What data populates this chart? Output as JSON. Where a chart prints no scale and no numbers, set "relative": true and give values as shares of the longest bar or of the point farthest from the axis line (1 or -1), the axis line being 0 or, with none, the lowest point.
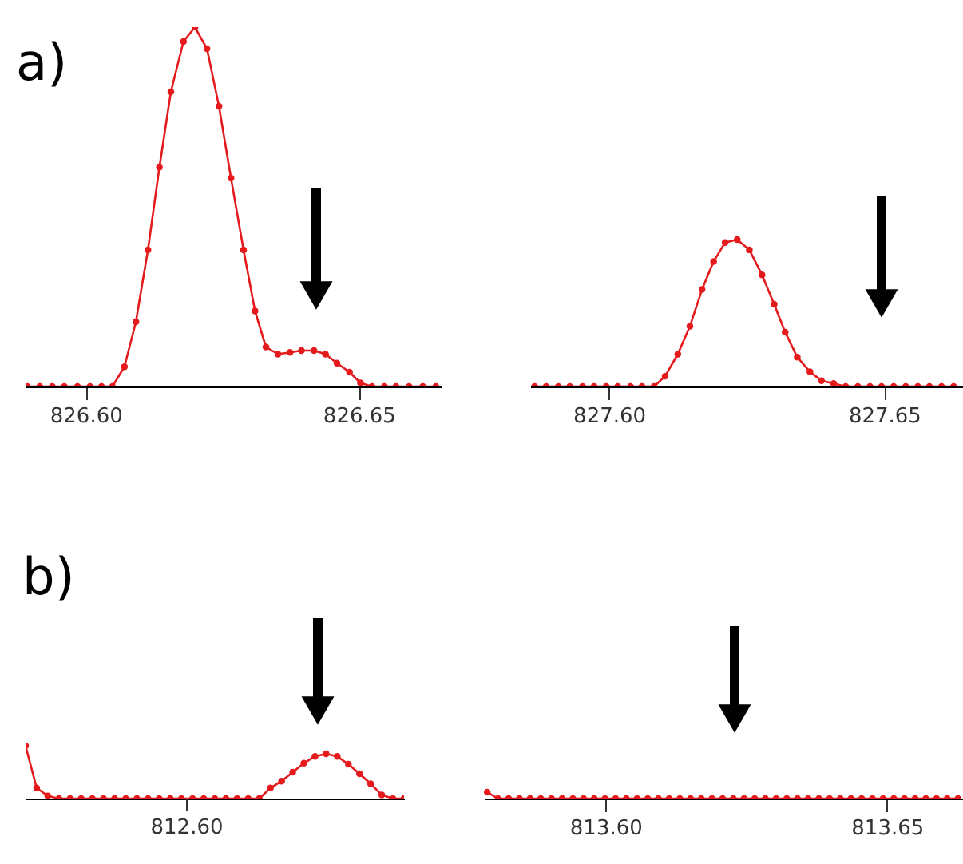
{
  "chart_data": [
    {
      "type": "line",
      "title": "a)",
      "relative": true,
      "marker": "circle",
      "line_style": "solid",
      "xlim": [
        826.589,
        826.665
      ],
      "xticks": [
        {
          "value": 826.6,
          "label": "826.60"
        },
        {
          "value": 826.65,
          "label": "826.65"
        }
      ],
      "x": [
        826.5893,
        826.5916,
        826.5939,
        826.5961,
        826.5985,
        826.6008,
        826.6029,
        826.6049,
        826.6071,
        826.6092,
        826.6114,
        826.6135,
        826.6156,
        826.6179,
        826.62,
        826.6222,
        826.6244,
        826.6266,
        826.6289,
        826.631,
        826.633,
        826.6352,
        826.6374,
        826.6395,
        826.6418,
        826.6439,
        826.646,
        826.6483,
        826.6503,
        826.6524,
        826.6547,
        826.6568,
        826.6592,
        826.6617,
        826.6641
      ],
      "series": [
        {
          "color": "#e41a1c",
          "values": [
            0,
            0,
            0,
            0,
            0,
            0,
            0,
            0,
            0.055,
            0.18,
            0.38,
            0.61,
            0.82,
            0.96,
            1.0,
            0.94,
            0.78,
            0.58,
            0.38,
            0.21,
            0.11,
            0.09,
            0.095,
            0.1,
            0.1,
            0.09,
            0.065,
            0.04,
            0.01,
            0,
            0,
            0,
            0,
            0,
            0
          ]
        }
      ]
    },
    {
      "type": "line",
      "relative": true,
      "marker": "circle",
      "line_style": "solid",
      "xlim": [
        827.5857,
        827.6643
      ],
      "xticks": [
        {
          "value": 827.6,
          "label": "827.60"
        },
        {
          "value": 827.65,
          "label": "827.65"
        }
      ],
      "x": [
        827.5865,
        827.5886,
        827.5908,
        827.5929,
        827.5952,
        827.5973,
        827.5995,
        827.6016,
        827.6039,
        827.606,
        827.6082,
        827.6102,
        827.6125,
        827.6147,
        827.6169,
        827.619,
        827.6211,
        827.6233,
        827.6255,
        827.6278,
        827.63,
        827.632,
        827.6342,
        827.6365,
        827.6386,
        827.6408,
        827.643,
        827.6452,
        827.6474,
        827.6495,
        827.6517,
        827.6539,
        827.6561,
        827.6582,
        827.6604,
        827.6626
      ],
      "series": [
        {
          "color": "#e41a1c",
          "values": [
            0,
            0,
            0,
            0,
            0,
            0,
            0,
            0,
            0,
            0,
            0,
            0.07,
            0.22,
            0.41,
            0.66,
            0.85,
            0.98,
            1.0,
            0.93,
            0.76,
            0.56,
            0.37,
            0.2,
            0.1,
            0.04,
            0.02,
            0,
            0,
            0,
            0,
            0,
            0,
            0,
            0,
            0,
            0
          ]
        }
      ]
    },
    {
      "type": "line",
      "title": "b)",
      "relative": true,
      "marker": "circle",
      "line_style": "solid",
      "annotations": [
        "812.60"
      ],
      "categories": [
        null,
        null,
        null,
        null,
        null,
        null,
        null,
        null,
        null,
        null,
        null,
        null,
        null,
        null,
        null,
        null,
        null,
        null,
        null,
        null,
        null,
        null,
        null,
        null,
        null,
        null,
        null,
        null,
        null,
        null,
        null,
        null,
        null,
        null,
        null
      ],
      "series": [
        {
          "color": "#e41a1c",
          "values": [
            1.0,
            0.2,
            0.05,
            0,
            0,
            0,
            0,
            0,
            0,
            0,
            0,
            0,
            0,
            0,
            0,
            0,
            0,
            0,
            0,
            0,
            0,
            0,
            0.2,
            0.33,
            0.5,
            0.67,
            0.8,
            0.85,
            0.8,
            0.65,
            0.47,
            0.28,
            0.07,
            0,
            0
          ]
        }
      ]
    },
    {
      "type": "line",
      "relative": true,
      "marker": "circle",
      "line_style": "solid",
      "xlim": [
        813.5784,
        813.6635
      ],
      "xticks": [
        {
          "value": 813.6,
          "label": "813.60"
        },
        {
          "value": 813.65,
          "label": "813.65"
        }
      ],
      "x": [
        813.579,
        813.5809,
        813.5828,
        813.5847,
        813.5866,
        813.5885,
        813.5904,
        813.5923,
        813.5942,
        813.5961,
        813.598,
        813.5999,
        813.6018,
        813.6037,
        813.6056,
        813.6075,
        813.6094,
        813.6113,
        813.6132,
        813.6151,
        813.617,
        813.6189,
        813.6208,
        813.6227,
        813.6246,
        813.6265,
        813.6284,
        813.6303,
        813.6322,
        813.6341,
        813.636,
        813.6379,
        813.6398,
        813.6417,
        813.6436,
        813.6455,
        813.6474,
        813.6493,
        813.6512,
        813.6531,
        813.655,
        813.6569,
        813.6588,
        813.6607,
        813.6626
      ],
      "series": [
        {
          "color": "#e41a1c",
          "values": [
            1.0,
            0,
            0,
            0,
            0,
            0,
            0,
            0,
            0,
            0,
            0,
            0,
            0,
            0,
            0,
            0,
            0,
            0,
            0,
            0,
            0,
            0,
            0,
            0,
            0,
            0,
            0,
            0,
            0,
            0,
            0,
            0,
            0,
            0,
            0,
            0,
            0,
            0,
            0,
            0,
            0,
            0,
            0,
            0,
            0
          ]
        }
      ]
    }
  ]
}
